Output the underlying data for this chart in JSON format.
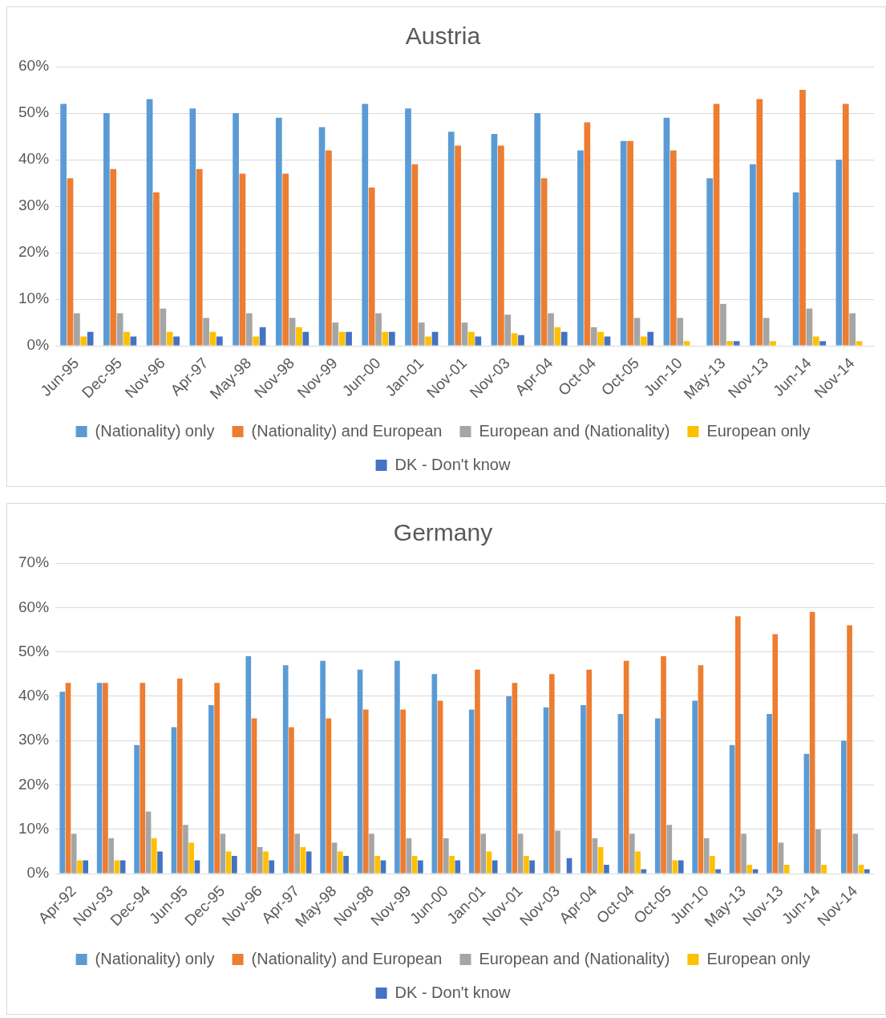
{
  "chart_data": [
    {
      "type": "bar",
      "title": "Austria",
      "categories": [
        "Jun-95",
        "Dec-95",
        "Nov-96",
        "Apr-97",
        "May-98",
        "Nov-98",
        "Nov-99",
        "Jun-00",
        "Jan-01",
        "Nov-01",
        "Nov-03",
        "Apr-04",
        "Oct-04",
        "Oct-05",
        "Jun-10",
        "May-13",
        "Nov-13",
        "Jun-14",
        "Nov-14"
      ],
      "series": [
        {
          "name": "(Nationality) only",
          "color": "#5b9bd5",
          "values": [
            52,
            50,
            53,
            51,
            50,
            49,
            47,
            52,
            51,
            46,
            45.5,
            50,
            42,
            44,
            49,
            36,
            39,
            33,
            40
          ]
        },
        {
          "name": "(Nationality) and European",
          "color": "#ed7d31",
          "values": [
            36,
            38,
            33,
            38,
            37,
            37,
            42,
            34,
            39,
            43,
            43,
            36,
            48,
            44,
            42,
            52,
            53,
            55,
            52
          ]
        },
        {
          "name": "European and (Nationality)",
          "color": "#a5a5a5",
          "values": [
            7,
            7,
            8,
            6,
            7,
            6,
            5,
            7,
            5,
            5,
            6.7,
            7,
            4,
            6,
            6,
            9,
            6,
            8,
            7
          ]
        },
        {
          "name": "European only",
          "color": "#ffc000",
          "values": [
            2,
            3,
            3,
            3,
            2,
            4,
            3,
            3,
            2,
            3,
            2.7,
            4,
            3,
            2,
            1,
            1,
            1,
            2,
            1
          ]
        },
        {
          "name": "DK - Don't know",
          "color": "#4472c4",
          "values": [
            3,
            2,
            2,
            2,
            4,
            3,
            3,
            3,
            3,
            2,
            2.3,
            3,
            2,
            3,
            0,
            1,
            0,
            1,
            0
          ]
        }
      ],
      "ylim": [
        0,
        60
      ],
      "yticks": [
        {
          "value": 0,
          "label": "0%"
        },
        {
          "value": 10,
          "label": "10%"
        },
        {
          "value": 20,
          "label": "20%"
        },
        {
          "value": 30,
          "label": "30%"
        },
        {
          "value": 40,
          "label": "40%"
        },
        {
          "value": 50,
          "label": "50%"
        },
        {
          "value": 60,
          "label": "60%"
        }
      ],
      "grid": "y",
      "legend": "bottom"
    },
    {
      "type": "bar",
      "title": "Germany",
      "categories": [
        "Apr-92",
        "Nov-93",
        "Dec-94",
        "Jun-95",
        "Dec-95",
        "Nov-96",
        "Apr-97",
        "May-98",
        "Nov-98",
        "Nov-99",
        "Jun-00",
        "Jan-01",
        "Nov-01",
        "Nov-03",
        "Apr-04",
        "Oct-04",
        "Oct-05",
        "Jun-10",
        "May-13",
        "Nov-13",
        "Jun-14",
        "Nov-14"
      ],
      "series": [
        {
          "name": "(Nationality) only",
          "color": "#5b9bd5",
          "values": [
            41,
            43,
            29,
            33,
            38,
            49,
            47,
            48,
            46,
            48,
            45,
            37,
            40,
            37.5,
            38,
            36,
            35,
            39,
            29,
            36,
            27,
            30
          ]
        },
        {
          "name": "(Nationality) and European",
          "color": "#ed7d31",
          "values": [
            43,
            43,
            43,
            44,
            43,
            35,
            33,
            35,
            37,
            37,
            39,
            46,
            43,
            45,
            46,
            48,
            49,
            47,
            58,
            54,
            59,
            56
          ]
        },
        {
          "name": "European and (Nationality)",
          "color": "#a5a5a5",
          "values": [
            9,
            8,
            14,
            11,
            9,
            6,
            9,
            7,
            9,
            8,
            8,
            9,
            9,
            9.7,
            8,
            9,
            11,
            8,
            9,
            7,
            10,
            9
          ]
        },
        {
          "name": "European only",
          "color": "#ffc000",
          "values": [
            3,
            3,
            8,
            7,
            5,
            5,
            6,
            5,
            4,
            4,
            4,
            5,
            4,
            0,
            6,
            5,
            3,
            4,
            2,
            2,
            2,
            2
          ]
        },
        {
          "name": "DK - Don't know",
          "color": "#4472c4",
          "values": [
            3,
            3,
            5,
            3,
            4,
            3,
            5,
            4,
            3,
            3,
            3,
            3,
            3,
            3.5,
            2,
            1,
            3,
            1,
            1,
            0,
            0,
            1
          ]
        }
      ],
      "ylim": [
        0,
        70
      ],
      "yticks": [
        {
          "value": 0,
          "label": "0%"
        },
        {
          "value": 10,
          "label": "10%"
        },
        {
          "value": 20,
          "label": "20%"
        },
        {
          "value": 30,
          "label": "30%"
        },
        {
          "value": 40,
          "label": "40%"
        },
        {
          "value": 50,
          "label": "50%"
        },
        {
          "value": 60,
          "label": "60%"
        },
        {
          "value": 70,
          "label": "70%"
        }
      ],
      "grid": "y",
      "legend": "bottom"
    }
  ]
}
